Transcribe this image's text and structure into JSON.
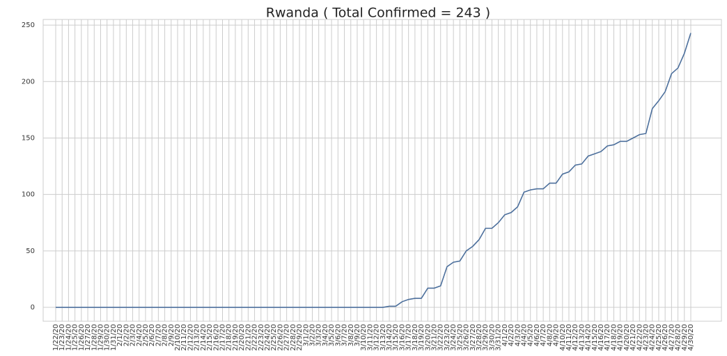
{
  "chart_data": {
    "type": "line",
    "title": "Rwanda ( Total Confirmed = 243 )",
    "categories": [
      "1/22/20",
      "1/23/20",
      "1/24/20",
      "1/25/20",
      "1/26/20",
      "1/27/20",
      "1/28/20",
      "1/29/20",
      "1/30/20",
      "1/31/20",
      "2/1/20",
      "2/2/20",
      "2/3/20",
      "2/4/20",
      "2/5/20",
      "2/6/20",
      "2/7/20",
      "2/8/20",
      "2/9/20",
      "2/10/20",
      "2/11/20",
      "2/12/20",
      "2/13/20",
      "2/14/20",
      "2/15/20",
      "2/16/20",
      "2/17/20",
      "2/18/20",
      "2/19/20",
      "2/20/20",
      "2/21/20",
      "2/22/20",
      "2/23/20",
      "2/24/20",
      "2/25/20",
      "2/26/20",
      "2/27/20",
      "2/28/20",
      "2/29/20",
      "3/1/20",
      "3/2/20",
      "3/3/20",
      "3/4/20",
      "3/5/20",
      "3/6/20",
      "3/7/20",
      "3/8/20",
      "3/9/20",
      "3/10/20",
      "3/11/20",
      "3/12/20",
      "3/13/20",
      "3/14/20",
      "3/15/20",
      "3/16/20",
      "3/17/20",
      "3/18/20",
      "3/19/20",
      "3/20/20",
      "3/21/20",
      "3/22/20",
      "3/23/20",
      "3/24/20",
      "3/25/20",
      "3/26/20",
      "3/27/20",
      "3/28/20",
      "3/29/20",
      "3/30/20",
      "3/31/20",
      "4/1/20",
      "4/2/20",
      "4/3/20",
      "4/4/20",
      "4/5/20",
      "4/6/20",
      "4/7/20",
      "4/8/20",
      "4/9/20",
      "4/10/20",
      "4/11/20",
      "4/12/20",
      "4/13/20",
      "4/14/20",
      "4/15/20",
      "4/16/20",
      "4/17/20",
      "4/18/20",
      "4/19/20",
      "4/20/20",
      "4/21/20",
      "4/22/20",
      "4/23/20",
      "4/24/20",
      "4/25/20",
      "4/26/20",
      "4/27/20",
      "4/28/20",
      "4/29/20",
      "4/30/20"
    ],
    "series": [
      {
        "name": "Confirmed",
        "color": "#4c6f9c",
        "values": [
          0,
          0,
          0,
          0,
          0,
          0,
          0,
          0,
          0,
          0,
          0,
          0,
          0,
          0,
          0,
          0,
          0,
          0,
          0,
          0,
          0,
          0,
          0,
          0,
          0,
          0,
          0,
          0,
          0,
          0,
          0,
          0,
          0,
          0,
          0,
          0,
          0,
          0,
          0,
          0,
          0,
          0,
          0,
          0,
          0,
          0,
          0,
          0,
          0,
          0,
          0,
          0,
          1,
          1,
          5,
          7,
          8,
          8,
          17,
          17,
          19,
          36,
          40,
          41,
          50,
          54,
          60,
          70,
          70,
          75,
          82,
          84,
          89,
          102,
          104,
          105,
          105,
          110,
          110,
          118,
          120,
          126,
          127,
          134,
          136,
          138,
          143,
          144,
          147,
          147,
          150,
          153,
          154,
          176,
          183,
          191,
          207,
          212,
          225,
          243
        ]
      }
    ],
    "ylim": [
      -12.3,
      255
    ],
    "yticks": [
      0,
      50,
      100,
      150,
      200,
      250
    ],
    "grid": true
  }
}
